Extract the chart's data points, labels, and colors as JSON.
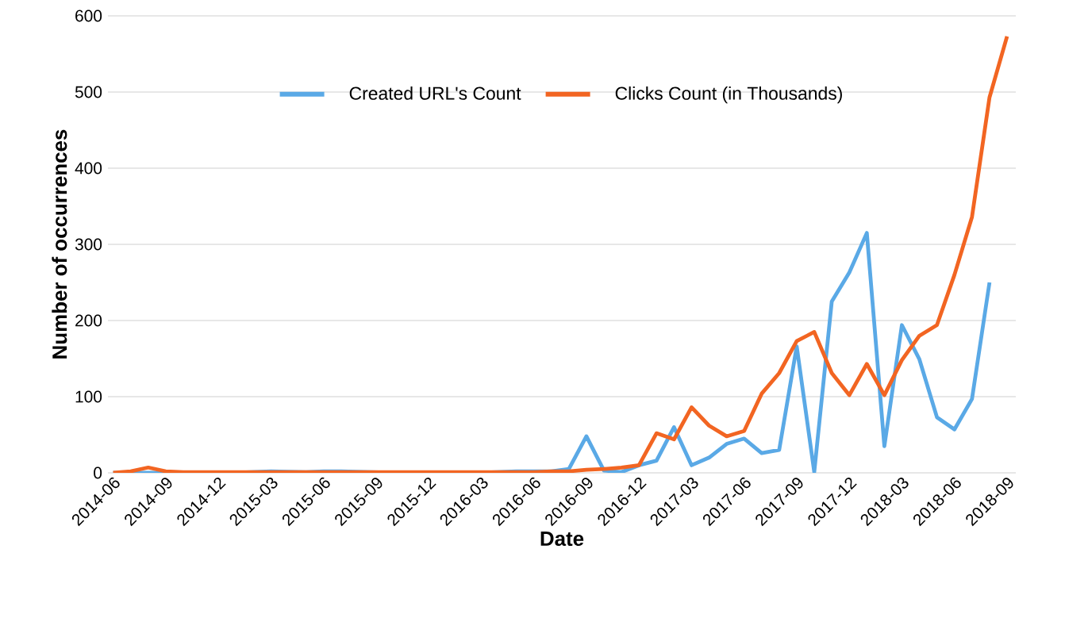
{
  "chart_data": {
    "type": "line",
    "xlabel": "Date",
    "ylabel": "Number of occurrences",
    "categories": [
      "2014-06",
      null,
      null,
      "2014-09",
      null,
      null,
      "2014-12",
      null,
      null,
      "2015-03",
      null,
      null,
      "2015-06",
      null,
      null,
      "2015-09",
      null,
      null,
      "2015-12",
      null,
      null,
      "2016-03",
      null,
      null,
      "2016-06",
      null,
      null,
      "2016-09",
      null,
      null,
      "2016-12",
      null,
      null,
      "2017-03",
      null,
      null,
      "2017-06",
      null,
      null,
      "2017-09",
      null,
      null,
      "2017-12",
      null,
      null,
      "2018-03",
      null,
      null,
      "2018-06",
      null,
      null,
      "2018-09"
    ],
    "series": [
      {
        "name": "Created URL's Count",
        "color": "#5aa9e6",
        "values": [
          0,
          0,
          0,
          0,
          0,
          0,
          0,
          0,
          1,
          2,
          null,
          1,
          2,
          2,
          null,
          null,
          0,
          0,
          0,
          0,
          0,
          0,
          1,
          2,
          2,
          2,
          5,
          48,
          3,
          1,
          10,
          16,
          60,
          10,
          20,
          38,
          45,
          26,
          30,
          166,
          1,
          225,
          263,
          315,
          35,
          194,
          149,
          73,
          57,
          97,
          250,
          null
        ]
      },
      {
        "name": "Clicks Count (in Thousands)",
        "color": "#f26522",
        "values": [
          0,
          2,
          7,
          2,
          1,
          1,
          1,
          1,
          1,
          1,
          1,
          1,
          1,
          1,
          1,
          1,
          1,
          1,
          1,
          1,
          1,
          1,
          1,
          1,
          1,
          2,
          2,
          4,
          5,
          7,
          10,
          52,
          44,
          86,
          62,
          48,
          55,
          104,
          131,
          173,
          185,
          131,
          102,
          143,
          102,
          148,
          180,
          194,
          260,
          336,
          493,
          573
        ]
      }
    ],
    "ylim": [
      0,
      600
    ],
    "yticks": [
      0,
      100,
      200,
      300,
      400,
      500,
      600
    ],
    "grid": "y",
    "legend": "top",
    "line_style": "solid",
    "marker": "none"
  }
}
